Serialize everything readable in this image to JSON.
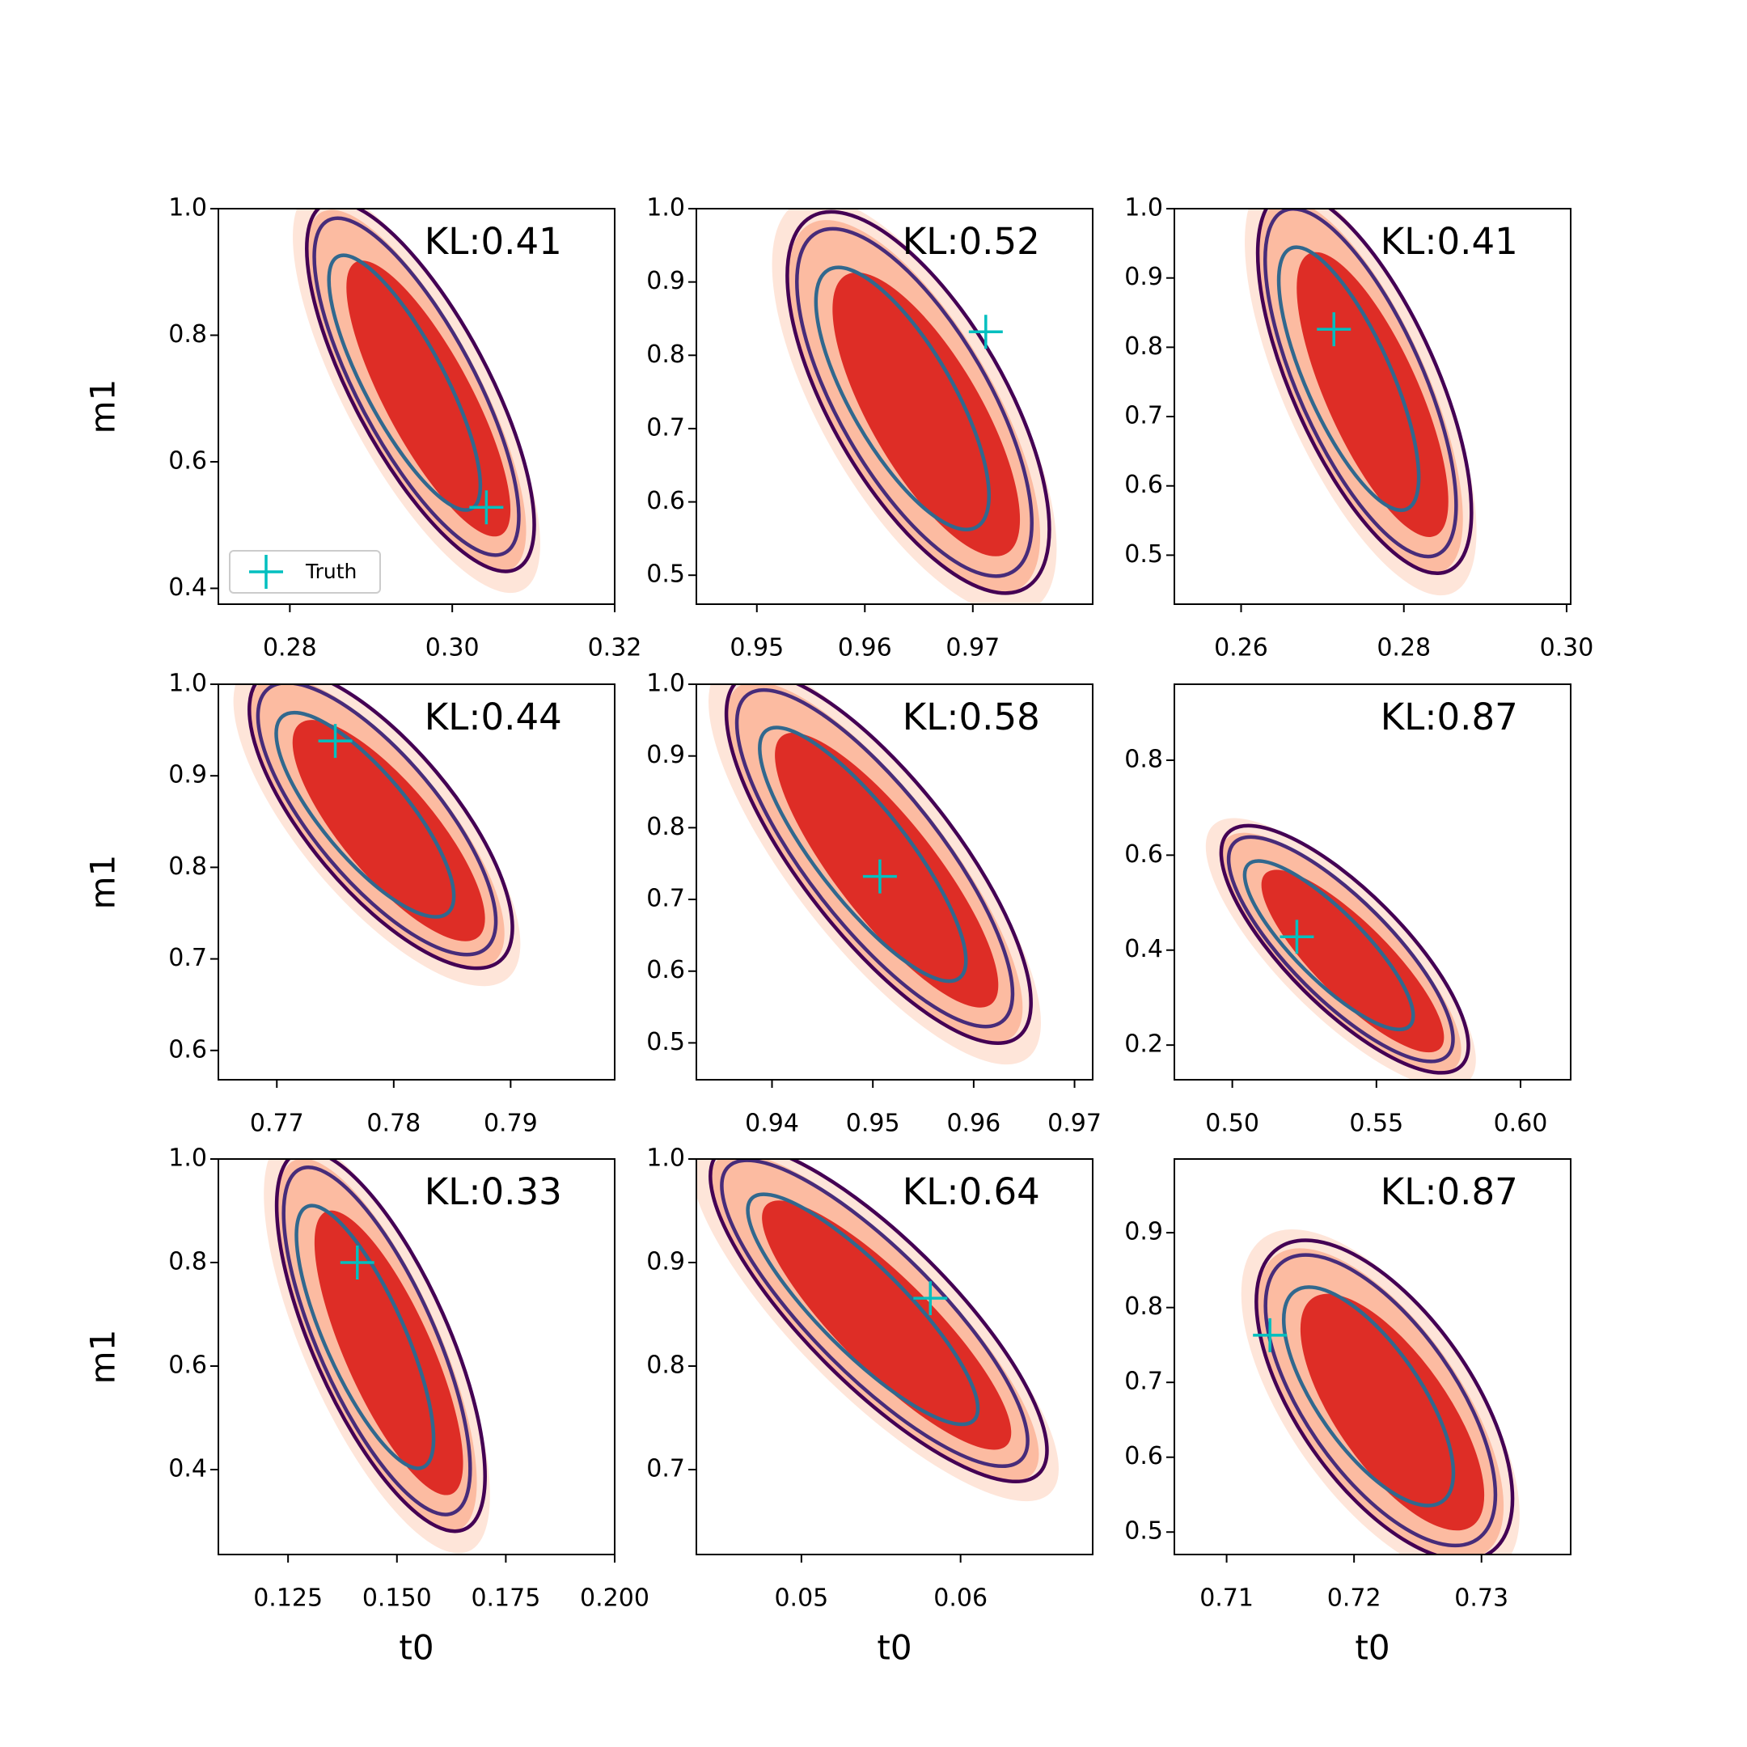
{
  "chart_data": [
    {
      "type": "scatter",
      "annotation": "KL:0.41",
      "ylabel": "m1",
      "legend": "lower left",
      "xlim": [
        0.2712,
        0.32
      ],
      "ylim": [
        0.375,
        1.0
      ],
      "xticks": [
        0.28,
        {
          "value": 0.3,
          "label": "0.30"
        },
        0.32
      ],
      "yticks": [
        0.4,
        0.6,
        0.8,
        {
          "value": 1.0,
          "label": "1.0"
        }
      ],
      "series": [
        {
          "name": "Truth",
          "color": "#00bfbf",
          "x": [
            0.3042
          ],
          "values": [
            0.528
          ]
        }
      ]
    },
    {
      "type": "scatter",
      "annotation": "KL:0.52",
      "xlim": [
        0.9444,
        0.9811
      ],
      "ylim": [
        0.4605,
        1.0
      ],
      "xticks": [
        0.95,
        0.96,
        0.97
      ],
      "yticks": [
        0.5,
        0.6,
        0.7,
        0.8,
        0.9,
        {
          "value": 1.0,
          "label": "1.0"
        }
      ],
      "series": [
        {
          "name": "Truth",
          "color": "#00bfbf",
          "x": [
            0.9712
          ],
          "values": [
            0.832
          ]
        }
      ]
    },
    {
      "type": "scatter",
      "annotation": "KL:0.41",
      "xlim": [
        0.2518,
        0.3005
      ],
      "ylim": [
        0.4293,
        1.0
      ],
      "xticks": [
        0.26,
        0.28,
        {
          "value": 0.3,
          "label": "0.30"
        }
      ],
      "yticks": [
        0.5,
        0.6,
        0.7,
        0.8,
        0.9,
        {
          "value": 1.0,
          "label": "1.0"
        }
      ],
      "series": [
        {
          "name": "Truth",
          "color": "#00bfbf",
          "x": [
            0.2714
          ],
          "values": [
            0.826
          ]
        }
      ]
    },
    {
      "type": "scatter",
      "annotation": "KL:0.44",
      "ylabel": "m1",
      "xlim": [
        0.765,
        0.7989
      ],
      "ylim": [
        0.568,
        1.0
      ],
      "xticks": [
        0.77,
        0.78,
        0.79
      ],
      "yticks": [
        0.6,
        0.7,
        0.8,
        0.9,
        {
          "value": 1.0,
          "label": "1.0"
        }
      ],
      "series": [
        {
          "name": "Truth",
          "color": "#00bfbf",
          "x": [
            0.775
          ],
          "values": [
            0.938
          ]
        }
      ]
    },
    {
      "type": "scatter",
      "annotation": "KL:0.58",
      "xlim": [
        0.9325,
        0.9718
      ],
      "ylim": [
        0.4486,
        1.0
      ],
      "xticks": [
        0.94,
        0.95,
        0.96,
        0.97
      ],
      "yticks": [
        0.5,
        0.6,
        0.7,
        0.8,
        0.9,
        {
          "value": 1.0,
          "label": "1.0"
        }
      ],
      "series": [
        {
          "name": "Truth",
          "color": "#00bfbf",
          "x": [
            0.9507
          ],
          "values": [
            0.732
          ]
        }
      ]
    },
    {
      "type": "scatter",
      "annotation": "KL:0.87",
      "xlim": [
        0.4799,
        0.6174
      ],
      "ylim": [
        0.127,
        0.96
      ],
      "xticks": [
        {
          "value": 0.5,
          "label": "0.50"
        },
        0.55,
        {
          "value": 0.6,
          "label": "0.60"
        }
      ],
      "yticks": [
        0.2,
        0.4,
        0.6,
        0.8
      ],
      "series": [
        {
          "name": "Truth",
          "color": "#00bfbf",
          "x": [
            0.5224
          ],
          "values": [
            0.428
          ]
        }
      ]
    },
    {
      "type": "scatter",
      "annotation": "KL:0.33",
      "ylabel": "m1",
      "xlabel": "t0",
      "xlim": [
        0.109,
        0.2
      ],
      "ylim": [
        0.236,
        1.0
      ],
      "xticks": [
        0.125,
        {
          "value": 0.15,
          "label": "0.150"
        },
        0.175,
        {
          "value": 0.2,
          "label": "0.200"
        }
      ],
      "yticks": [
        0.4,
        0.6,
        0.8,
        {
          "value": 1.0,
          "label": "1.0"
        }
      ],
      "series": [
        {
          "name": "Truth",
          "color": "#00bfbf",
          "x": [
            0.1409
          ],
          "values": [
            0.8
          ]
        }
      ]
    },
    {
      "type": "scatter",
      "annotation": "KL:0.64",
      "xlabel": "t0",
      "xlim": [
        0.0434,
        0.0683
      ],
      "ylim": [
        0.618,
        1.0
      ],
      "xticks": [
        0.05,
        0.06
      ],
      "yticks": [
        0.7,
        0.8,
        0.9,
        {
          "value": 1.0,
          "label": "1.0"
        }
      ],
      "series": [
        {
          "name": "Truth",
          "color": "#00bfbf",
          "x": [
            0.0581
          ],
          "values": [
            0.8655
          ]
        }
      ]
    },
    {
      "type": "scatter",
      "annotation": "KL:0.87",
      "xlabel": "t0",
      "xlim": [
        0.7059,
        0.737
      ],
      "ylim": [
        0.47,
        0.9985
      ],
      "xticks": [
        0.71,
        0.72,
        0.73
      ],
      "yticks": [
        0.5,
        0.6,
        0.7,
        0.8,
        0.9
      ],
      "series": [
        {
          "name": "Truth",
          "color": "#00bfbf",
          "x": [
            0.7134
          ],
          "values": [
            0.763
          ]
        }
      ]
    }
  ]
}
